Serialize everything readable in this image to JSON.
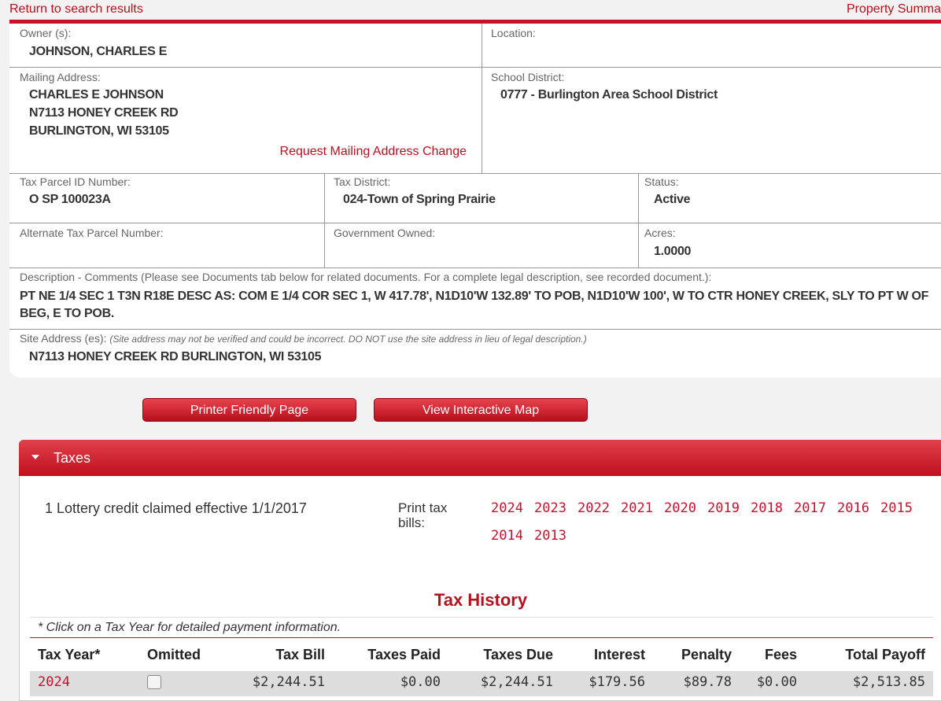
{
  "nav": {
    "back": "Return to search results",
    "summary": "Property Summa"
  },
  "property": {
    "owner": {
      "label": "Owner (s):",
      "value": "JOHNSON, CHARLES E"
    },
    "location": {
      "label": "Location:"
    },
    "mailing": {
      "label": "Mailing Address:",
      "lines": [
        "CHARLES E JOHNSON",
        "N7113 HONEY CREEK RD",
        "BURLINGTON, WI 53105"
      ],
      "link": "Request Mailing Address Change"
    },
    "school_district": {
      "label": "School District:",
      "value": "0777 - Burlington Area School District"
    },
    "parcel_id": {
      "label": "Tax Parcel ID Number:",
      "value": "O SP 100023A"
    },
    "tax_district": {
      "label": "Tax District:",
      "value": "024-Town of Spring Prairie"
    },
    "status": {
      "label": "Status:",
      "value": "Active"
    },
    "alt_parcel": {
      "label": "Alternate Tax Parcel Number:"
    },
    "gov_owned": {
      "label": "Government Owned:"
    },
    "acres": {
      "label": "Acres:",
      "value": "1.0000"
    },
    "description": {
      "label": "Description - Comments (Please see Documents tab below for related documents. For a complete legal description, see recorded document.):",
      "value": "PT NE 1/4 SEC 1 T3N R18E DESC AS: COM E 1/4 COR SEC 1, W 417.78', N1D10'W 132.89' TO POB, N1D10'W 100', W TO CTR HONEY CREEK, SLY TO PT W OF BEG, E TO POB."
    },
    "site_address": {
      "label": "Site Address (es):",
      "note": "(Site address may not be verified and could be incorrect. DO NOT use the site address in lieu of legal description.)",
      "value": "N7113 HONEY CREEK RD BURLINGTON, WI 53105"
    }
  },
  "buttons": [
    "Printer Friendly Page",
    "View Interactive Map"
  ],
  "taxes": {
    "title": "Taxes",
    "lottery": "1 Lottery credit claimed effective 1/1/2017",
    "print_label": "Print tax bills:",
    "years": [
      "2024",
      "2023",
      "2022",
      "2021",
      "2020",
      "2019",
      "2018",
      "2017",
      "2016",
      "2015",
      "2014",
      "2013"
    ],
    "history": {
      "title": "Tax History",
      "note": "* Click on a Tax Year for detailed payment information.",
      "columns": [
        "Tax Year*",
        "Omitted",
        "Tax Bill",
        "Taxes Paid",
        "Taxes Due",
        "Interest",
        "Penalty",
        "Fees",
        "Total Payoff"
      ],
      "rows": [
        {
          "year": "2024",
          "omitted": false,
          "values": [
            "$2,244.51",
            "$0.00",
            "$2,244.51",
            "$179.56",
            "$89.78",
            "$0.00",
            "$2,513.85"
          ]
        }
      ]
    }
  }
}
